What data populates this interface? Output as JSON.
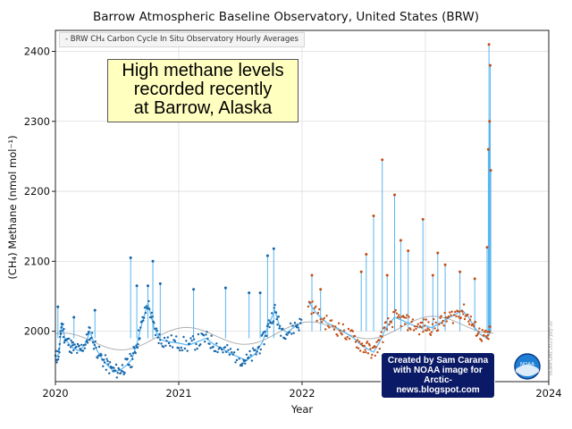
{
  "chart_data": {
    "type": "line",
    "title": "Barrow Atmospheric Baseline Observatory, United States (BRW)",
    "legend_label": "BRW CH₄ Carbon Cycle In Situ Observatory Hourly Averages",
    "legend_placement": "top-left",
    "xlabel": "Year",
    "ylabel": "(CH₄) Methane (nmol mol⁻¹)",
    "xlim": [
      2020,
      2024
    ],
    "ylim": [
      1928,
      2430
    ],
    "x_ticks": [
      "2020",
      "2021",
      "2022",
      "2023",
      "2024"
    ],
    "y_ticks": [
      "2000",
      "2100",
      "2200",
      "2300",
      "2400"
    ],
    "grid": true,
    "colors": {
      "data_blue": "#1565a8",
      "data_orange": "#c24e14",
      "line": "#58b6f0",
      "fit": "#b0b0b0"
    },
    "series": [
      {
        "points": [
          [
            2020.0,
            1962
          ],
          [
            2020.03,
            1968
          ],
          [
            2020.05,
            2012
          ],
          [
            2020.08,
            1988
          ],
          [
            2020.12,
            1980
          ],
          [
            2020.15,
            1975
          ],
          [
            2020.2,
            1972
          ],
          [
            2020.25,
            1985
          ],
          [
            2020.28,
            2000
          ],
          [
            2020.33,
            1975
          ],
          [
            2020.38,
            1960
          ],
          [
            2020.43,
            1950
          ],
          [
            2020.48,
            1942
          ],
          [
            2020.53,
            1945
          ],
          [
            2020.58,
            1952
          ],
          [
            2020.62,
            1960
          ],
          [
            2020.66,
            1982
          ],
          [
            2020.7,
            2010
          ],
          [
            2020.75,
            2040
          ],
          [
            2020.8,
            2005
          ],
          [
            2020.85,
            1988
          ],
          [
            2020.92,
            1985
          ],
          [
            2021.0,
            1983
          ],
          [
            2021.08,
            1980
          ],
          [
            2021.15,
            1985
          ],
          [
            2021.22,
            1990
          ],
          [
            2021.28,
            1982
          ],
          [
            2021.35,
            1975
          ],
          [
            2021.42,
            1968
          ],
          [
            2021.5,
            1962
          ],
          [
            2021.55,
            1958
          ],
          [
            2021.62,
            1968
          ],
          [
            2021.68,
            1985
          ],
          [
            2021.73,
            2010
          ],
          [
            2021.78,
            2030
          ],
          [
            2021.82,
            2005
          ],
          [
            2021.88,
            1998
          ],
          [
            2021.95,
            2008
          ],
          [
            2022.0,
            2012
          ]
        ]
      },
      {
        "points": [
          [
            2022.05,
            2042
          ],
          [
            2022.12,
            2025
          ],
          [
            2022.2,
            2012
          ],
          [
            2022.28,
            2005
          ],
          [
            2022.35,
            1998
          ],
          [
            2022.42,
            1990
          ],
          [
            2022.48,
            1980
          ],
          [
            2022.53,
            1975
          ],
          [
            2022.58,
            1970
          ],
          [
            2022.63,
            1985
          ],
          [
            2022.68,
            2005
          ],
          [
            2022.75,
            2020
          ],
          [
            2022.82,
            2015
          ],
          [
            2022.88,
            2010
          ],
          [
            2022.95,
            2005
          ],
          [
            2023.0,
            2008
          ],
          [
            2023.05,
            2005
          ],
          [
            2023.12,
            2012
          ],
          [
            2023.18,
            2018
          ],
          [
            2023.25,
            2025
          ],
          [
            2023.3,
            2030
          ],
          [
            2023.35,
            2020
          ],
          [
            2023.4,
            2005
          ],
          [
            2023.45,
            1995
          ],
          [
            2023.5,
            1990
          ],
          [
            2023.53,
            2000
          ]
        ]
      }
    ],
    "spikes": [
      [
        2020.02,
        2035
      ],
      [
        2020.15,
        2020
      ],
      [
        2020.32,
        2030
      ],
      [
        2020.61,
        2105
      ],
      [
        2020.66,
        2065
      ],
      [
        2020.75,
        2065
      ],
      [
        2020.79,
        2100
      ],
      [
        2020.85,
        2068
      ],
      [
        2021.12,
        2060
      ],
      [
        2021.38,
        2062
      ],
      [
        2021.57,
        2055
      ],
      [
        2021.66,
        2055
      ],
      [
        2021.72,
        2108
      ],
      [
        2021.77,
        2118
      ],
      [
        2022.08,
        2080
      ],
      [
        2022.15,
        2060
      ],
      [
        2022.48,
        2085
      ],
      [
        2022.52,
        2110
      ],
      [
        2022.58,
        2165
      ],
      [
        2022.65,
        2245
      ],
      [
        2022.69,
        2080
      ],
      [
        2022.75,
        2195
      ],
      [
        2022.8,
        2130
      ],
      [
        2022.86,
        2115
      ],
      [
        2022.98,
        2160
      ],
      [
        2023.06,
        2080
      ],
      [
        2023.1,
        2112
      ],
      [
        2023.16,
        2095
      ],
      [
        2023.28,
        2085
      ],
      [
        2023.4,
        2075
      ],
      [
        2023.5,
        2120
      ],
      [
        2023.51,
        2260
      ],
      [
        2023.515,
        2410
      ],
      [
        2023.52,
        2300
      ],
      [
        2023.525,
        2380
      ],
      [
        2023.53,
        2230
      ]
    ]
  },
  "annotation": {
    "line1": "High methane levels",
    "line2": "recorded recently",
    "line3": "at Barrow, Alaska"
  },
  "credit": {
    "line1": "Created by Sam Carana",
    "line2": "with NOAA image for",
    "line3": "Arctic-news.blogspot.com"
  },
  "logo": {
    "text": "NOAA"
  },
  "stamp": "NOAA GML 2023-July-30"
}
